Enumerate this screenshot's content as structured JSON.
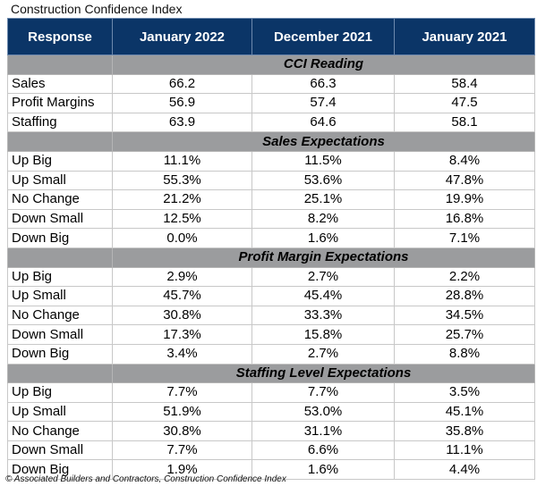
{
  "title": "Construction Confidence Index",
  "headers": [
    "Response",
    "January 2022",
    "December 2021",
    "January 2021"
  ],
  "sections": [
    {
      "label": "CCI Reading",
      "rows": [
        [
          "Sales",
          "66.2",
          "66.3",
          "58.4"
        ],
        [
          "Profit Margins",
          "56.9",
          "57.4",
          "47.5"
        ],
        [
          "Staffing",
          "63.9",
          "64.6",
          "58.1"
        ]
      ]
    },
    {
      "label": "Sales Expectations",
      "rows": [
        [
          "Up Big",
          "11.1%",
          "11.5%",
          "8.4%"
        ],
        [
          "Up Small",
          "55.3%",
          "53.6%",
          "47.8%"
        ],
        [
          "No Change",
          "21.2%",
          "25.1%",
          "19.9%"
        ],
        [
          "Down Small",
          "12.5%",
          "8.2%",
          "16.8%"
        ],
        [
          "Down Big",
          "0.0%",
          "1.6%",
          "7.1%"
        ]
      ]
    },
    {
      "label": "Profit Margin Expectations",
      "rows": [
        [
          "Up Big",
          "2.9%",
          "2.7%",
          "2.2%"
        ],
        [
          "Up Small",
          "45.7%",
          "45.4%",
          "28.8%"
        ],
        [
          "No Change",
          "30.8%",
          "33.3%",
          "34.5%"
        ],
        [
          "Down Small",
          "17.3%",
          "15.8%",
          "25.7%"
        ],
        [
          "Down Big",
          "3.4%",
          "2.7%",
          "8.8%"
        ]
      ]
    },
    {
      "label": "Staffing Level Expectations",
      "rows": [
        [
          "Up Big",
          "7.7%",
          "7.7%",
          "3.5%"
        ],
        [
          "Up Small",
          "51.9%",
          "53.0%",
          "45.1%"
        ],
        [
          "No Change",
          "30.8%",
          "31.1%",
          "35.8%"
        ],
        [
          "Down Small",
          "7.7%",
          "6.6%",
          "11.1%"
        ],
        [
          "Down Big",
          "1.9%",
          "1.6%",
          "4.4%"
        ]
      ]
    }
  ],
  "footer": "© Associated Builders and Contractors, Construction Confidence Index",
  "colors": {
    "header_bg": "#0b3567",
    "section_bg": "#9b9c9e"
  }
}
